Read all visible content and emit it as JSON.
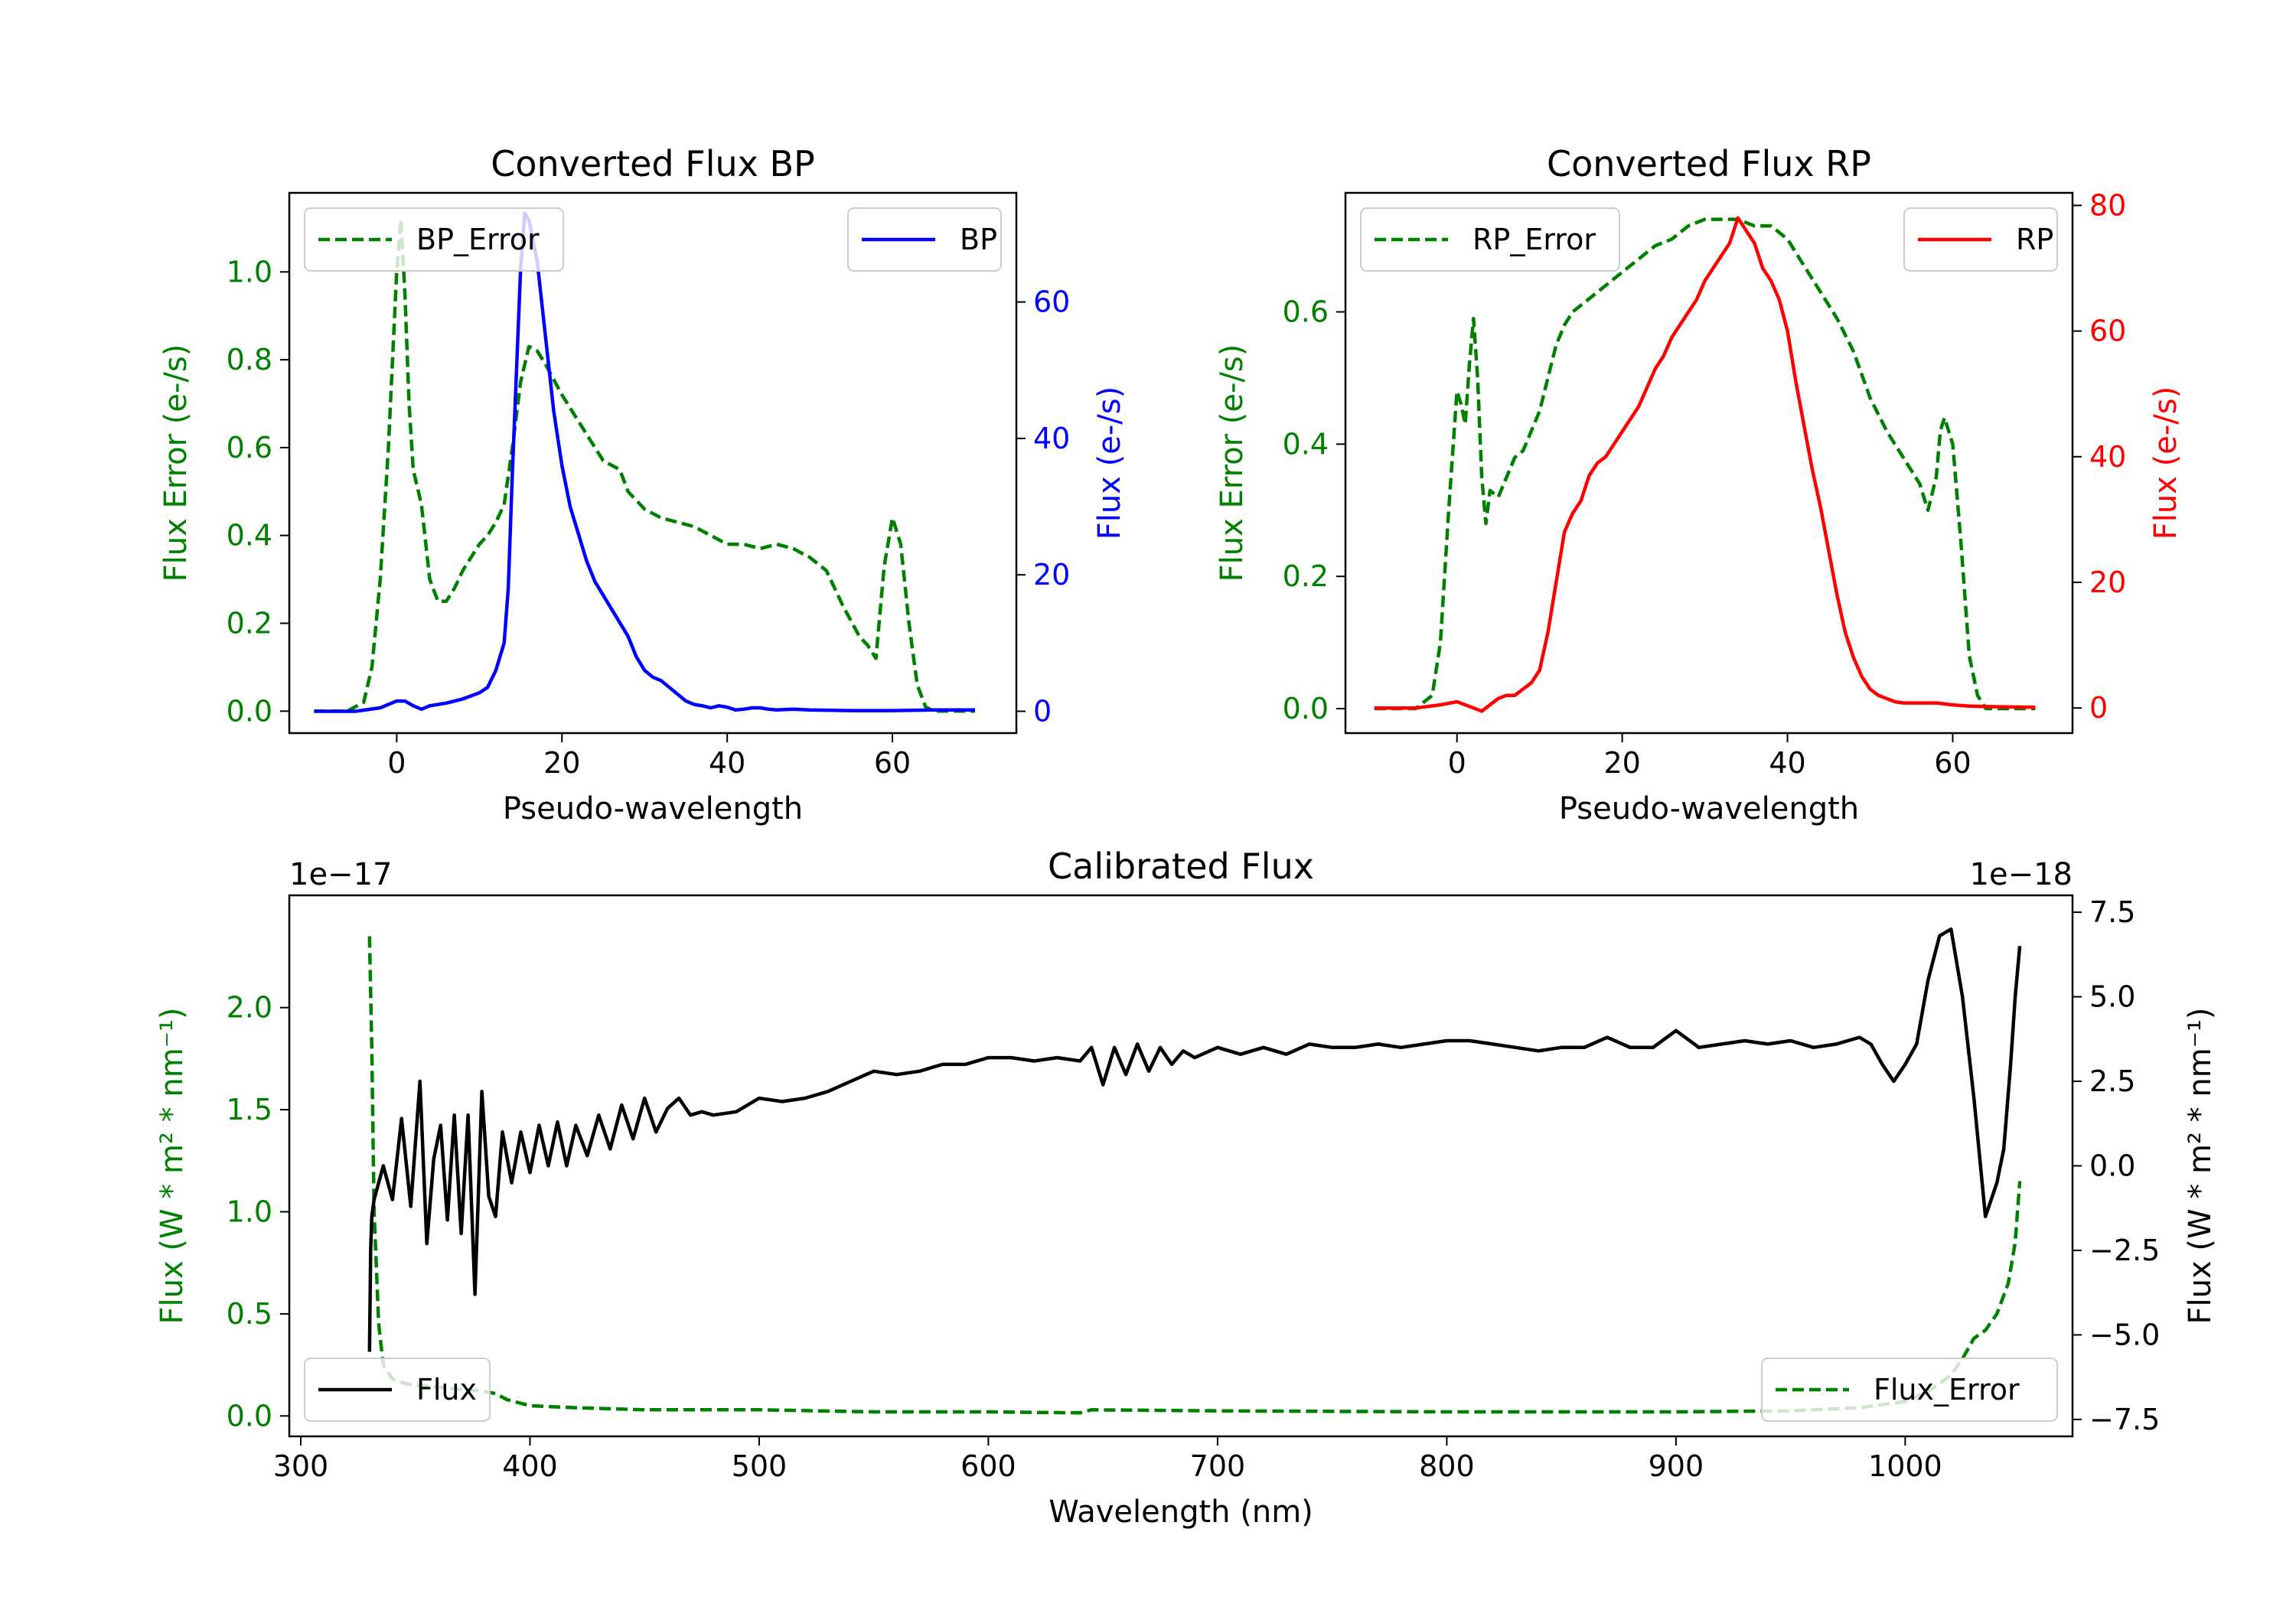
{
  "chart_data": [
    {
      "id": "bp",
      "type": "line",
      "title": "Converted Flux BP",
      "xlabel": "Pseudo-wavelength",
      "ylabel_left": "Flux Error (e-/s)",
      "ylabel_right": "Flux (e-/s)",
      "xlim": [
        -13,
        75
      ],
      "ylim_left": [
        -0.05,
        1.18
      ],
      "ylim_right": [
        -3.2,
        76
      ],
      "xticks": [
        0,
        20,
        40,
        60
      ],
      "yticks_left": [
        "0.0",
        "0.2",
        "0.4",
        "0.6",
        "0.8",
        "1.0"
      ],
      "yticks_right": [
        "0",
        "20",
        "40",
        "60"
      ],
      "left_color": "#008000",
      "right_color": "#0000ff",
      "series": [
        {
          "name": "BP_Error",
          "axis": "left",
          "style": "dashed",
          "color": "#008000",
          "x": [
            -10,
            -6,
            -4,
            -3,
            -2,
            -1,
            0,
            0.5,
            1,
            1.5,
            2,
            3,
            4,
            5,
            6,
            7,
            8,
            9,
            10,
            11,
            12,
            13,
            14,
            15,
            16,
            17,
            18,
            20,
            22,
            24,
            25,
            26,
            27,
            28,
            30,
            32,
            34,
            36,
            38,
            40,
            42,
            44,
            46,
            48,
            50,
            52,
            54,
            56,
            57,
            58,
            59,
            60,
            61,
            62,
            63,
            64,
            65,
            66,
            68,
            70
          ],
          "values": [
            0.0,
            0.0,
            0.02,
            0.1,
            0.3,
            0.6,
            1.0,
            1.12,
            0.95,
            0.7,
            0.55,
            0.47,
            0.3,
            0.25,
            0.25,
            0.28,
            0.32,
            0.35,
            0.38,
            0.4,
            0.43,
            0.47,
            0.6,
            0.75,
            0.83,
            0.82,
            0.79,
            0.72,
            0.66,
            0.6,
            0.57,
            0.56,
            0.55,
            0.5,
            0.46,
            0.44,
            0.43,
            0.42,
            0.4,
            0.38,
            0.38,
            0.37,
            0.38,
            0.37,
            0.35,
            0.32,
            0.24,
            0.17,
            0.15,
            0.12,
            0.33,
            0.44,
            0.38,
            0.2,
            0.06,
            0.01,
            0.0,
            0.0,
            0.0,
            0.0
          ]
        },
        {
          "name": "BP",
          "axis": "right",
          "style": "solid",
          "color": "#0000ff",
          "x": [
            -10,
            -5,
            -2,
            0,
            1,
            2,
            3,
            4,
            6,
            8,
            10,
            11,
            12,
            13,
            13.5,
            14,
            15,
            15.5,
            16,
            17,
            18,
            19,
            20,
            21,
            22,
            23,
            24,
            25,
            26,
            27,
            28,
            29,
            30,
            31,
            32,
            33,
            34,
            35,
            36,
            37,
            38,
            39,
            40,
            41,
            42,
            43,
            44,
            45,
            46,
            48,
            50,
            55,
            60,
            65,
            70
          ],
          "values": [
            0,
            0,
            0.5,
            1.5,
            1.5,
            0.8,
            0.3,
            0.8,
            1.2,
            1.8,
            2.7,
            3.5,
            6,
            10,
            18,
            35,
            65,
            73,
            72,
            66,
            55,
            44,
            36,
            30,
            26,
            22,
            19,
            17,
            15,
            13,
            11,
            8,
            6,
            5,
            4.5,
            3.5,
            2.5,
            1.5,
            1.0,
            0.8,
            0.5,
            0.8,
            0.6,
            0.2,
            0.3,
            0.5,
            0.5,
            0.3,
            0.2,
            0.3,
            0.2,
            0.1,
            0.1,
            0.2,
            0.2
          ]
        }
      ],
      "legend": [
        {
          "label": "BP_Error",
          "position": "upper-left",
          "style": "dashed",
          "color": "#008000"
        },
        {
          "label": "BP",
          "position": "upper-right",
          "style": "solid",
          "color": "#0000ff"
        }
      ]
    },
    {
      "id": "rp",
      "type": "line",
      "title": "Converted Flux RP",
      "xlabel": "Pseudo-wavelength",
      "ylabel_left": "Flux Error (e-/s)",
      "ylabel_right": "Flux (e-/s)",
      "xlim": [
        -13.5,
        74.5
      ],
      "ylim_left": [
        -0.037,
        0.78
      ],
      "ylim_right": [
        -4,
        82
      ],
      "xticks": [
        0,
        20,
        40,
        60
      ],
      "yticks_left": [
        "0.0",
        "0.2",
        "0.4",
        "0.6"
      ],
      "yticks_right": [
        "0",
        "20",
        "40",
        "60",
        "80"
      ],
      "left_color": "#008000",
      "right_color": "#ff0000",
      "series": [
        {
          "name": "RP_Error",
          "axis": "left",
          "style": "dashed",
          "color": "#008000",
          "x": [
            -10,
            -5,
            -3,
            -2,
            -1,
            0,
            0.5,
            1,
            1.5,
            2,
            2.5,
            3,
            3.5,
            4,
            5,
            6,
            7,
            8,
            9,
            10,
            11,
            12,
            13,
            14,
            16,
            18,
            20,
            22,
            24,
            26,
            28,
            30,
            32,
            34,
            36,
            38,
            40,
            42,
            44,
            46,
            48,
            50,
            52,
            54,
            55,
            56,
            57,
            58,
            58.5,
            59,
            60,
            61,
            62,
            63,
            64,
            65,
            66,
            67,
            68,
            70
          ],
          "values": [
            0.0,
            0.0,
            0.02,
            0.1,
            0.3,
            0.48,
            0.46,
            0.43,
            0.52,
            0.59,
            0.5,
            0.35,
            0.28,
            0.33,
            0.32,
            0.35,
            0.38,
            0.39,
            0.42,
            0.45,
            0.5,
            0.55,
            0.58,
            0.6,
            0.62,
            0.64,
            0.66,
            0.68,
            0.7,
            0.71,
            0.73,
            0.74,
            0.74,
            0.74,
            0.73,
            0.73,
            0.71,
            0.67,
            0.63,
            0.59,
            0.54,
            0.47,
            0.42,
            0.38,
            0.36,
            0.34,
            0.3,
            0.35,
            0.42,
            0.44,
            0.4,
            0.25,
            0.08,
            0.02,
            0.0,
            0.0,
            0.0,
            0.0,
            0.0,
            0.0
          ]
        },
        {
          "name": "RP",
          "axis": "right",
          "style": "solid",
          "color": "#ff0000",
          "x": [
            -10,
            -5,
            -2,
            0,
            1,
            2,
            3,
            4,
            5,
            6,
            7,
            8,
            9,
            10,
            11,
            12,
            13,
            14,
            15,
            16,
            17,
            18,
            19,
            20,
            21,
            22,
            23,
            24,
            25,
            26,
            27,
            28,
            29,
            30,
            31,
            32,
            33,
            34,
            35,
            36,
            37,
            38,
            39,
            40,
            41,
            42,
            43,
            44,
            45,
            46,
            47,
            48,
            49,
            50,
            51,
            52,
            53,
            54,
            56,
            58,
            60,
            62,
            65,
            70
          ],
          "values": [
            0,
            0,
            0.5,
            1,
            0.5,
            0,
            -0.5,
            0.5,
            1.5,
            2,
            2,
            3,
            4,
            6,
            12,
            20,
            28,
            31,
            33,
            37,
            39,
            40,
            42,
            44,
            46,
            48,
            51,
            54,
            56,
            59,
            61,
            63,
            65,
            68,
            70,
            72,
            74,
            78,
            76,
            74,
            70,
            68,
            65,
            60,
            52,
            45,
            38,
            32,
            25,
            18,
            12,
            8,
            5,
            3,
            2,
            1.5,
            1,
            0.8,
            0.8,
            0.8,
            0.5,
            0.3,
            0.2,
            0.1
          ]
        }
      ],
      "legend": [
        {
          "label": "RP_Error",
          "position": "upper-left",
          "style": "dashed",
          "color": "#008000"
        },
        {
          "label": "RP",
          "position": "upper-right",
          "style": "solid",
          "color": "#ff0000"
        }
      ]
    },
    {
      "id": "cal",
      "type": "line",
      "title": "Calibrated Flux",
      "xlabel": "Wavelength (nm)",
      "ylabel_left": "Flux (W * m² * nm⁻¹)",
      "ylabel_right": "Flux (W * m² * nm⁻¹)",
      "offset_left": "1e−17",
      "offset_right": "1e−18",
      "xlim": [
        295,
        1073
      ],
      "ylim_left": [
        -0.1,
        2.55
      ],
      "ylim_right": [
        -8.0,
        8.0
      ],
      "xticks": [
        300,
        400,
        500,
        600,
        700,
        800,
        900,
        1000
      ],
      "yticks_left": [
        "0.0",
        "0.5",
        "1.0",
        "1.5",
        "2.0"
      ],
      "yticks_right": [
        "−7.5",
        "−5.0",
        "−2.5",
        "0.0",
        "2.5",
        "5.0",
        "7.5"
      ],
      "left_color": "#008000",
      "right_color": "#000000",
      "series": [
        {
          "name": "Flux_Error",
          "axis": "left",
          "style": "dashed",
          "color": "#008000",
          "x": [
            330,
            331,
            332,
            334,
            336,
            340,
            345,
            350,
            360,
            370,
            380,
            385,
            390,
            400,
            420,
            450,
            500,
            550,
            600,
            640,
            645,
            700,
            800,
            900,
            950,
            980,
            1000,
            1010,
            1020,
            1025,
            1030,
            1035,
            1040,
            1045,
            1048,
            1050
          ],
          "values": [
            2.35,
            1.8,
            1.0,
            0.45,
            0.25,
            0.18,
            0.16,
            0.15,
            0.14,
            0.13,
            0.12,
            0.11,
            0.08,
            0.05,
            0.04,
            0.03,
            0.03,
            0.02,
            0.02,
            0.015,
            0.03,
            0.025,
            0.02,
            0.02,
            0.025,
            0.04,
            0.07,
            0.12,
            0.2,
            0.28,
            0.38,
            0.42,
            0.5,
            0.65,
            0.85,
            1.15
          ]
        },
        {
          "name": "Flux",
          "axis": "right",
          "style": "solid",
          "color": "#000000",
          "x": [
            330,
            330.5,
            331,
            332,
            334,
            336,
            338,
            340,
            344,
            348,
            352,
            355,
            358,
            361,
            364,
            367,
            370,
            373,
            376,
            379,
            382,
            385,
            388,
            392,
            396,
            400,
            404,
            408,
            412,
            416,
            420,
            425,
            430,
            435,
            440,
            445,
            450,
            455,
            460,
            465,
            470,
            475,
            480,
            490,
            500,
            510,
            520,
            530,
            540,
            550,
            560,
            570,
            580,
            590,
            600,
            610,
            620,
            630,
            640,
            645,
            650,
            655,
            660,
            665,
            670,
            675,
            680,
            685,
            690,
            700,
            710,
            720,
            730,
            740,
            750,
            760,
            770,
            780,
            790,
            800,
            810,
            820,
            830,
            840,
            850,
            860,
            870,
            880,
            890,
            900,
            910,
            920,
            930,
            940,
            950,
            960,
            970,
            980,
            985,
            990,
            995,
            1000,
            1005,
            1010,
            1015,
            1020,
            1025,
            1030,
            1035,
            1040,
            1043,
            1046,
            1048,
            1050
          ],
          "values": [
            -5.5,
            -2.5,
            -1.5,
            -1.0,
            -0.5,
            0.0,
            -0.5,
            -1.0,
            1.4,
            -1.2,
            2.5,
            -2.3,
            0.2,
            1.2,
            -1.6,
            1.5,
            -2.0,
            1.5,
            -3.8,
            2.2,
            -0.9,
            -1.5,
            1.0,
            -0.5,
            1.0,
            -0.2,
            1.2,
            0.0,
            1.3,
            0.0,
            1.2,
            0.3,
            1.5,
            0.5,
            1.8,
            0.8,
            2.0,
            1.0,
            1.7,
            2.0,
            1.5,
            1.6,
            1.5,
            1.6,
            2.0,
            1.9,
            2.0,
            2.2,
            2.5,
            2.8,
            2.7,
            2.8,
            3.0,
            3.0,
            3.2,
            3.2,
            3.1,
            3.2,
            3.1,
            3.5,
            2.4,
            3.5,
            2.7,
            3.6,
            2.8,
            3.5,
            3.0,
            3.4,
            3.2,
            3.5,
            3.3,
            3.5,
            3.3,
            3.6,
            3.5,
            3.5,
            3.6,
            3.5,
            3.6,
            3.7,
            3.7,
            3.6,
            3.5,
            3.4,
            3.5,
            3.5,
            3.8,
            3.5,
            3.5,
            4.0,
            3.5,
            3.6,
            3.7,
            3.6,
            3.7,
            3.5,
            3.6,
            3.8,
            3.6,
            3.0,
            2.5,
            3.0,
            3.6,
            5.5,
            6.8,
            7.0,
            5.0,
            2.0,
            -1.5,
            -0.5,
            0.5,
            3.0,
            5.0,
            6.5
          ]
        }
      ],
      "legend": [
        {
          "label": "Flux",
          "position": "lower-left",
          "style": "solid",
          "color": "#000000"
        },
        {
          "label": "Flux_Error",
          "position": "lower-right",
          "style": "dashed",
          "color": "#008000"
        }
      ]
    }
  ]
}
